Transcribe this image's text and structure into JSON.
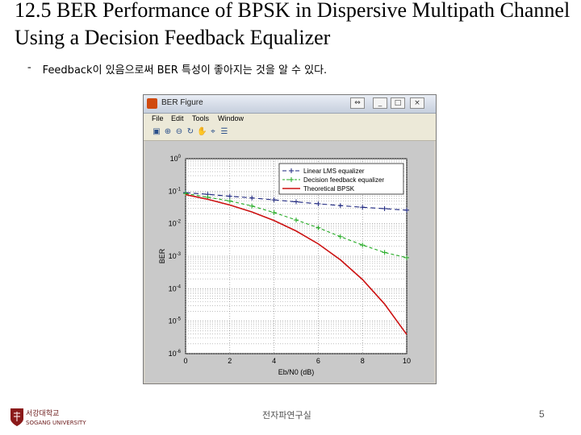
{
  "slide": {
    "title": "12.5 BER Performance of BPSK in Dispersive Multipath Channel Using a Decision Feedback Equalizer",
    "bullet_marker": "-",
    "bullet_text": "Feedback이 있음으로써 BER 특성이 좋아지는 것을 알 수 있다.",
    "footer_university": "서강대학교",
    "footer_university_en": "SOGANG UNIVERSITY",
    "footer_lab": "전자파연구실",
    "page_number": "5"
  },
  "window": {
    "title": "BER Figure",
    "buttons": [
      "⇔",
      "_",
      "□",
      "×"
    ],
    "menu": [
      "File",
      "Edit",
      "Tools",
      "Window"
    ],
    "toolbar_icons": [
      "print-icon",
      "zoom-in-icon",
      "zoom-out-icon",
      "rotate-icon",
      "pan-icon",
      "data-cursor-icon",
      "legend-icon"
    ]
  },
  "chart_data": {
    "type": "line",
    "xlabel": "Eb/N0 (dB)",
    "ylabel": "BER",
    "xlim": [
      0,
      10
    ],
    "ylim": [
      1e-06,
      1
    ],
    "yscale": "log",
    "x_ticks": [
      "0",
      "2",
      "4",
      "6",
      "8",
      "10"
    ],
    "y_ticks": [
      "10^0",
      "10^-1",
      "10^-2",
      "10^-3",
      "10^-4",
      "10^-5",
      "10^-6"
    ],
    "grid": true,
    "legend_position": "top-right",
    "series": [
      {
        "name": "Linear LMS equalizer",
        "color": "#1a237e",
        "x": [
          0,
          1,
          2,
          3,
          4,
          5,
          6,
          7,
          8,
          9,
          10
        ],
        "y": [
          0.09,
          0.08,
          0.07,
          0.062,
          0.054,
          0.047,
          0.041,
          0.036,
          0.032,
          0.029,
          0.026
        ]
      },
      {
        "name": "Decision feedback equalizer",
        "color": "#22aa22",
        "x": [
          0,
          1,
          2,
          3,
          4,
          5,
          6,
          7,
          8,
          9,
          10
        ],
        "y": [
          0.085,
          0.065,
          0.05,
          0.035,
          0.022,
          0.013,
          0.0075,
          0.004,
          0.0022,
          0.0013,
          0.0009
        ]
      },
      {
        "name": "Theoretical BPSK",
        "color": "#cc1111",
        "x": [
          0,
          1,
          2,
          3,
          4,
          5,
          6,
          7,
          8,
          9,
          10
        ],
        "y": [
          0.0786,
          0.0563,
          0.0375,
          0.0229,
          0.0125,
          0.00595,
          0.00239,
          0.000773,
          0.000191,
          3.36e-05,
          3.9e-06
        ]
      }
    ]
  }
}
